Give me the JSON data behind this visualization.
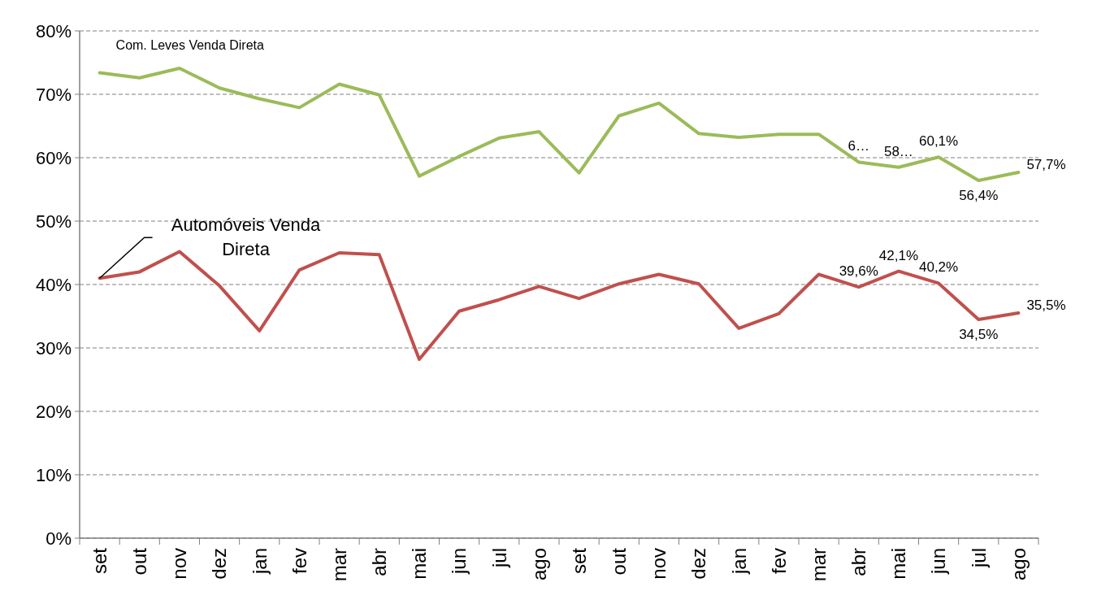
{
  "chart_data": {
    "type": "line",
    "categories": [
      "set",
      "out",
      "nov",
      "dez",
      "jan",
      "fev",
      "mar",
      "abr",
      "mai",
      "jun",
      "jul",
      "ago",
      "set",
      "out",
      "nov",
      "dez",
      "jan",
      "fev",
      "mar",
      "abr",
      "mai",
      "jun",
      "jul",
      "ago"
    ],
    "ylim": [
      0,
      80
    ],
    "yticks": [
      {
        "value": 0,
        "label": "0%"
      },
      {
        "value": 10,
        "label": "10%"
      },
      {
        "value": 20,
        "label": "20%"
      },
      {
        "value": 30,
        "label": "30%"
      },
      {
        "value": 40,
        "label": "40%"
      },
      {
        "value": 50,
        "label": "50%"
      },
      {
        "value": 60,
        "label": "60%"
      },
      {
        "value": 70,
        "label": "70%"
      },
      {
        "value": 80,
        "label": "80%"
      }
    ],
    "grid": "y",
    "marker": "none",
    "line_style": "solid",
    "series": [
      {
        "name": "Com. Leves Venda Direta",
        "color": "#9bbb59",
        "values": [
          73.4,
          72.6,
          74.1,
          71.0,
          69.3,
          67.9,
          71.6,
          69.9,
          57.1,
          60.2,
          63.1,
          64.1,
          57.6,
          66.6,
          68.6,
          63.8,
          63.2,
          63.7,
          63.7,
          59.3,
          58.5,
          60.1,
          56.4,
          57.7
        ],
        "value_labels": [
          null,
          null,
          null,
          null,
          null,
          null,
          null,
          null,
          null,
          null,
          null,
          null,
          null,
          null,
          null,
          null,
          null,
          null,
          null,
          "6…",
          "58…",
          "60,1%",
          "56,4%",
          "57,7%"
        ]
      },
      {
        "name": "Automóveis Venda Direta",
        "color": "#c0504d",
        "values": [
          41.0,
          42.0,
          45.2,
          39.8,
          32.7,
          42.3,
          45.0,
          44.7,
          28.2,
          35.8,
          37.6,
          39.7,
          37.8,
          40.1,
          41.6,
          40.1,
          33.1,
          35.4,
          41.6,
          39.6,
          42.1,
          40.2,
          34.5,
          35.5
        ],
        "value_labels": [
          null,
          null,
          null,
          null,
          null,
          null,
          null,
          null,
          null,
          null,
          null,
          null,
          null,
          null,
          null,
          null,
          null,
          null,
          null,
          "39,6%",
          "42,1%",
          "40,2%",
          "34,5%",
          "35,5%"
        ]
      }
    ]
  }
}
